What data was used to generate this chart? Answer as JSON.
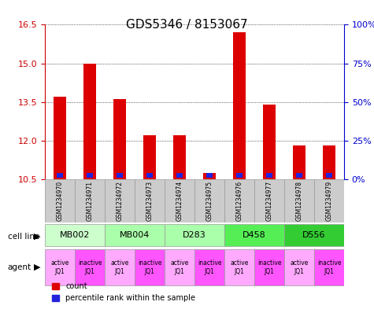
{
  "title": "GDS5346 / 8153067",
  "samples": [
    "GSM1234970",
    "GSM1234971",
    "GSM1234972",
    "GSM1234973",
    "GSM1234974",
    "GSM1234975",
    "GSM1234976",
    "GSM1234977",
    "GSM1234978",
    "GSM1234979"
  ],
  "red_values": [
    13.7,
    15.0,
    13.6,
    12.2,
    12.2,
    10.75,
    16.2,
    13.4,
    11.8,
    11.8
  ],
  "blue_values": [
    0.55,
    0.55,
    0.55,
    0.55,
    0.55,
    0.55,
    0.55,
    0.55,
    0.55,
    0.55
  ],
  "base": 10.5,
  "ylim_left": [
    10.5,
    16.5
  ],
  "ylim_right": [
    0,
    100
  ],
  "yticks_left": [
    10.5,
    12.0,
    13.5,
    15.0,
    16.5
  ],
  "yticks_right": [
    0,
    25,
    50,
    75,
    100
  ],
  "ytick_labels_right": [
    "0%",
    "25%",
    "50%",
    "75%",
    "100%"
  ],
  "cell_lines": [
    {
      "label": "MB002",
      "cols": [
        0,
        1
      ],
      "color": "#ccffcc"
    },
    {
      "label": "MB004",
      "cols": [
        2,
        3
      ],
      "color": "#aaffaa"
    },
    {
      "label": "D283",
      "cols": [
        4,
        5
      ],
      "color": "#aaffaa"
    },
    {
      "label": "D458",
      "cols": [
        6,
        7
      ],
      "color": "#55ee55"
    },
    {
      "label": "D556",
      "cols": [
        8,
        9
      ],
      "color": "#33cc33"
    }
  ],
  "agents": [
    "active\nJQ1",
    "inactive\nJQ1",
    "active\nJQ1",
    "inactive\nJQ1",
    "active\nJQ1",
    "inactive\nJQ1",
    "active\nJQ1",
    "inactive\nJQ1",
    "active\nJQ1",
    "inactive\nJQ1"
  ],
  "agent_color_active": "#ffaaff",
  "agent_color_inactive": "#ff55ff",
  "bar_color_red": "#dd0000",
  "bar_color_blue": "#2222dd",
  "grid_color": "#000000",
  "left_tick_color": "#cc0000",
  "right_tick_color": "#0000cc",
  "sample_box_color": "#cccccc",
  "bar_width": 0.4
}
